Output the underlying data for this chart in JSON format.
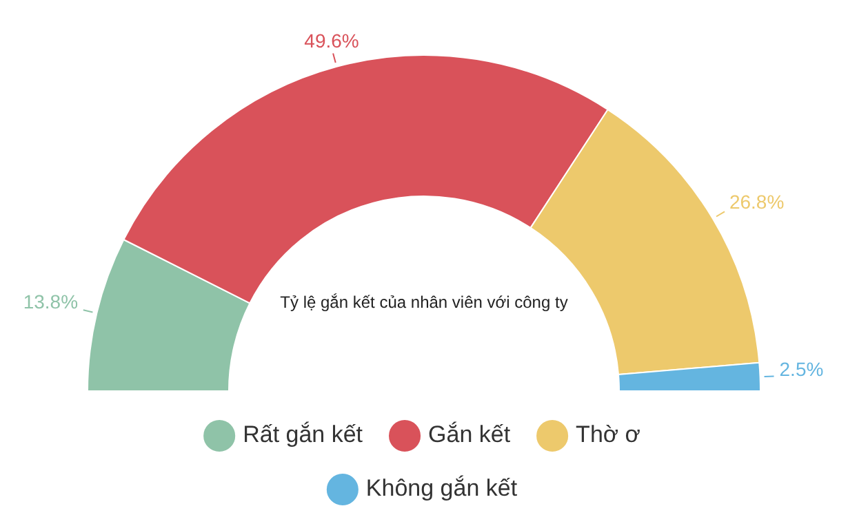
{
  "chart_data": {
    "type": "donut",
    "title": "Tỷ lệ gắn kết của nhân viên với công ty",
    "categories": [
      "Rất gắn kết",
      "Gắn kết",
      "Thờ ơ",
      "Không gắn kết"
    ],
    "values": [
      13.8,
      49.6,
      26.8,
      2.5
    ],
    "colors": [
      "#8fc3a8",
      "#d9525a",
      "#edc96c",
      "#64b5e0"
    ],
    "value_labels": [
      "13.8%",
      "49.6%",
      "26.8%",
      "2.5%"
    ],
    "legend": "bottom"
  }
}
